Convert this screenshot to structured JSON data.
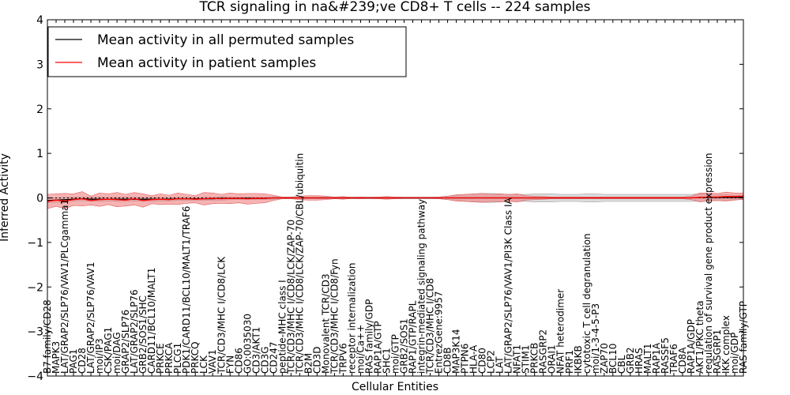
{
  "chart_data": {
    "type": "line",
    "title": "TCR signaling in na&#239;ve CD8+ T cells -- 224 samples",
    "xlabel": "Cellular Entities",
    "ylabel": "Inferred Activity",
    "ylim": [
      -4,
      4
    ],
    "yticks": [
      "4",
      "3",
      "2",
      "1",
      "0",
      "−1",
      "−2",
      "−3",
      "−4"
    ],
    "grid": false,
    "legend_position": "top-left",
    "colors": {
      "permuted": "#000000",
      "patient": "#ff0000",
      "patient_band": "#f08080",
      "permuted_band": "#bdbdbd"
    },
    "legend": [
      {
        "key": "permuted",
        "label": "Mean activity in all permuted samples"
      },
      {
        "key": "patient",
        "label": "Mean activity in patient samples"
      }
    ],
    "categories": [
      "B7 family/CD28",
      "MAPK3",
      "LAT/GRAP2/SLP76/VAV1/PLCgamma1",
      "PAG1",
      "CD28",
      "LAT/GRAP2/SLP76/VAV1",
      "moi/IP3",
      "CSK/PAG1",
      "moi/DAG",
      "GRAP2/SLP76",
      "LAT/GRAP2/SLP76",
      "GRB2/SOS1/SHC",
      "CARD11/BCL10/MALT1",
      "PRKCE",
      "PRKCA",
      "PLCG1",
      "PDK1/CARD11/BCL10/MALT1/TRAF6",
      "PRKCQ",
      "LCK",
      "VAV1",
      "TCR/CD3/MHC I/CD8/LCK",
      "FYN",
      "CD86",
      "GO:0035030",
      "CD3/AKT1",
      "CD3G",
      "CD247",
      "peptide-MHC class I",
      "TCR/CD3/MHC I/CD8/LCK/ZAP-70",
      "TCR/CD3/MHC I/CD8/LCK/ZAP-70/CBL/ubiquitin",
      "B2M",
      "CD3D",
      "Monovalent TCR/CD3",
      "TCR/CD3/MHC I/CD8/Fyn",
      "TRPV6",
      "receptor internalization",
      "moi/Ca++",
      "RAS family/GDP",
      "RAP1A/GTP",
      "SHC1",
      "moi/GTP",
      "GRB2/SOS1",
      "RAP1/GTP/RAPL",
      "integrin-mediated signaling pathway",
      "TCR/CD3/MHC I/CD8",
      "EntrezGene:9957",
      "CD8B",
      "MAP3K14",
      "PTPN6",
      "HLA-A",
      "CD80",
      "LCP2",
      "LAT",
      "LAT/GRAP2/SLP76/VAV1/PI3K Class IA",
      "NFAT1",
      "STIM1",
      "PRKCB",
      "RASGRP2",
      "ORAI1",
      "NFAT heterodimer",
      "PRF1",
      "IKBKB",
      "cytotoxic T cell degranulation",
      "moi/1-3-4-5-P3",
      "ZAP70",
      "BCL10",
      "CBL",
      "GRB2",
      "HRAS",
      "MALT1",
      "RAP1A",
      "RASSF5",
      "TRAF6",
      "CD8A",
      "RAP1A/GDP",
      "AKT1/PKC theta",
      "regulation of survival gene product expression",
      "RASGRP1",
      "IKK complex",
      "moi/GDP",
      "RAS family/GTP"
    ],
    "series": [
      {
        "name": "Mean activity in all permuted samples",
        "key": "permuted",
        "values": [
          -0.06,
          -0.05,
          -0.04,
          -0.03,
          -0.02,
          -0.03,
          -0.03,
          -0.03,
          -0.03,
          -0.03,
          -0.03,
          -0.03,
          -0.03,
          -0.03,
          -0.03,
          -0.02,
          -0.02,
          -0.02,
          -0.02,
          -0.02,
          -0.01,
          -0.01,
          -0.01,
          -0.01,
          -0.01,
          -0.01,
          0.0,
          0.0,
          0.0,
          0.0,
          0.0,
          0.0,
          0.0,
          0.0,
          0.0,
          0.0,
          0.0,
          0.0,
          0.0,
          0.0,
          0.0,
          0.0,
          0.0,
          0.0,
          0.0,
          0.0,
          0.0,
          0.0,
          0.0,
          0.0,
          0.0,
          0.0,
          0.0,
          0.0,
          0.0,
          0.0,
          0.0,
          0.0,
          0.0,
          0.0,
          0.0,
          0.0,
          0.0,
          0.0,
          0.0,
          0.0,
          0.0,
          0.0,
          0.0,
          0.0,
          0.0,
          0.0,
          0.0,
          0.0,
          0.0,
          0.01,
          0.01,
          0.01,
          0.01,
          0.01,
          0.01
        ],
        "band": [
          0.05,
          0.05,
          0.05,
          0.05,
          0.04,
          0.05,
          0.05,
          0.04,
          0.05,
          0.05,
          0.04,
          0.05,
          0.05,
          0.04,
          0.04,
          0.04,
          0.04,
          0.04,
          0.04,
          0.03,
          0.04,
          0.03,
          0.03,
          0.03,
          0.03,
          0.03,
          0.03,
          0.02,
          0.02,
          0.02,
          0.02,
          0.02,
          0.02,
          0.02,
          0.02,
          0.02,
          0.02,
          0.02,
          0.02,
          0.02,
          0.02,
          0.02,
          0.02,
          0.02,
          0.02,
          0.02,
          0.04,
          0.06,
          0.08,
          0.09,
          0.1,
          0.1,
          0.09,
          0.08,
          0.08,
          0.08,
          0.09,
          0.09,
          0.09,
          0.08,
          0.08,
          0.08,
          0.09,
          0.09,
          0.08,
          0.08,
          0.08,
          0.08,
          0.08,
          0.08,
          0.08,
          0.08,
          0.08,
          0.08,
          0.08,
          0.08,
          0.07,
          0.07,
          0.06,
          0.05,
          0.05
        ]
      },
      {
        "name": "Mean activity in patient samples",
        "key": "patient",
        "values": [
          -0.08,
          -0.05,
          -0.07,
          -0.04,
          -0.02,
          -0.06,
          -0.04,
          -0.03,
          -0.04,
          -0.05,
          -0.02,
          -0.06,
          -0.04,
          -0.03,
          -0.04,
          -0.02,
          -0.02,
          -0.03,
          -0.02,
          -0.01,
          -0.02,
          -0.01,
          -0.01,
          -0.02,
          -0.01,
          -0.01,
          0.0,
          0.0,
          0.0,
          0.0,
          0.0,
          0.0,
          0.0,
          0.0,
          0.0,
          0.0,
          0.0,
          0.0,
          0.0,
          0.0,
          0.0,
          0.0,
          0.0,
          0.0,
          0.0,
          0.0,
          0.0,
          0.0,
          0.0,
          0.0,
          0.0,
          0.0,
          0.0,
          0.0,
          0.0,
          0.0,
          0.0,
          0.0,
          0.0,
          0.0,
          0.0,
          0.0,
          0.0,
          0.0,
          0.0,
          0.0,
          0.0,
          0.0,
          0.0,
          0.0,
          0.0,
          0.0,
          0.0,
          0.0,
          0.0,
          0.01,
          0.02,
          0.02,
          0.03,
          0.03,
          0.04
        ],
        "band": [
          0.16,
          0.14,
          0.17,
          0.13,
          0.16,
          0.1,
          0.15,
          0.12,
          0.16,
          0.13,
          0.14,
          0.15,
          0.09,
          0.12,
          0.1,
          0.13,
          0.1,
          0.08,
          0.14,
          0.12,
          0.1,
          0.12,
          0.1,
          0.12,
          0.11,
          0.1,
          0.06,
          0.02,
          0.02,
          0.04,
          0.05,
          0.05,
          0.04,
          0.02,
          0.03,
          0.01,
          0.02,
          0.01,
          0.02,
          0.03,
          0.02,
          0.01,
          0.01,
          0.01,
          0.01,
          0.02,
          0.04,
          0.07,
          0.08,
          0.09,
          0.1,
          0.08,
          0.09,
          0.08,
          0.09,
          0.05,
          0.04,
          0.03,
          0.02,
          0.02,
          0.02,
          0.02,
          0.02,
          0.02,
          0.02,
          0.02,
          0.02,
          0.02,
          0.02,
          0.02,
          0.02,
          0.02,
          0.02,
          0.02,
          0.04,
          0.1,
          0.09,
          0.08,
          0.1,
          0.08,
          0.07
        ]
      }
    ]
  }
}
